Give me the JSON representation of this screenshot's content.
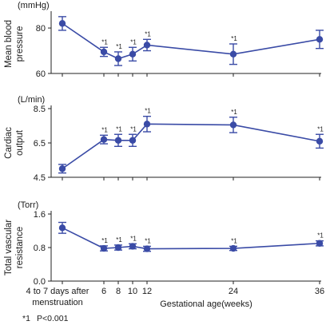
{
  "chart_data": {
    "type": "line",
    "x_positions": [
      0,
      6,
      8,
      10,
      12,
      24,
      36
    ],
    "x_tick_labels": [
      "4 to 7 days after menstruation",
      "6",
      "8",
      "10",
      "12",
      "24",
      "36"
    ],
    "xlabel": "Gestational age(weeks)",
    "significance_marker": "*1",
    "footnote": {
      "marker": "*1",
      "text": "P<0.001"
    },
    "color": "#3a4ba6",
    "panels": [
      {
        "ylabel": "Mean blood pressure",
        "unit": "(mmHg)",
        "ylim": [
          60,
          86
        ],
        "yticks": [
          "60",
          "80"
        ],
        "ytick_values": [
          60,
          80
        ],
        "values": [
          82,
          69.5,
          66.5,
          68.5,
          72.5,
          68.5,
          75
        ],
        "errors": [
          3,
          2,
          3,
          3,
          2.5,
          4.5,
          4
        ],
        "significant": [
          false,
          true,
          true,
          true,
          true,
          true,
          false
        ]
      },
      {
        "ylabel": "Cardiac output",
        "unit": "(L/min)",
        "ylim": [
          4.5,
          8.5
        ],
        "yticks": [
          "4.5",
          "6.5",
          "8.5"
        ],
        "ytick_values": [
          4.5,
          6.5,
          8.5
        ],
        "values": [
          5.0,
          6.7,
          6.65,
          6.65,
          7.6,
          7.55,
          6.6
        ],
        "errors": [
          0.25,
          0.25,
          0.35,
          0.35,
          0.45,
          0.45,
          0.4
        ],
        "significant": [
          false,
          true,
          true,
          true,
          true,
          true,
          true
        ]
      },
      {
        "ylabel": "Total vascular resistance",
        "unit": "(Torr)",
        "ylim": [
          0,
          1.6
        ],
        "yticks": [
          "0.0",
          "0.8",
          "1.6"
        ],
        "ytick_values": [
          0,
          0.8,
          1.6
        ],
        "values": [
          1.27,
          0.78,
          0.8,
          0.83,
          0.77,
          0.78,
          0.9
        ],
        "errors": [
          0.13,
          0.06,
          0.06,
          0.06,
          0.06,
          0.05,
          0.06
        ],
        "significant": [
          false,
          true,
          true,
          true,
          true,
          true,
          true
        ]
      }
    ]
  }
}
